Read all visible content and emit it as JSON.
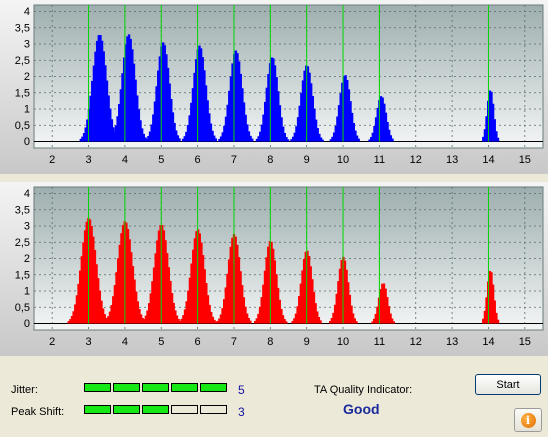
{
  "chart_data": [
    {
      "type": "bar",
      "color": "#0000ff",
      "x_ticks": [
        "2",
        "3",
        "4",
        "5",
        "6",
        "7",
        "8",
        "9",
        "10",
        "11",
        "12",
        "13",
        "14",
        "15"
      ],
      "y_ticks": [
        "0",
        "0,5",
        "1",
        "1,5",
        "2",
        "2,5",
        "3",
        "3,5",
        "4"
      ],
      "xlim": [
        1.5,
        15.5
      ],
      "ylim": [
        -0.2,
        4.2
      ],
      "grid": true,
      "marker_lines": [
        3,
        4,
        5,
        6,
        7,
        8,
        9,
        10,
        11,
        14
      ],
      "marker_color": "#00d800",
      "peaks": [
        {
          "center": 3.3,
          "height": 3.3,
          "width": 0.19
        },
        {
          "center": 4.1,
          "height": 3.3,
          "width": 0.18
        },
        {
          "center": 5.05,
          "height": 3.05,
          "width": 0.17
        },
        {
          "center": 6.05,
          "height": 2.95,
          "width": 0.17
        },
        {
          "center": 7.05,
          "height": 2.8,
          "width": 0.17
        },
        {
          "center": 8.05,
          "height": 2.6,
          "width": 0.16
        },
        {
          "center": 9.0,
          "height": 2.35,
          "width": 0.16
        },
        {
          "center": 10.05,
          "height": 2.05,
          "width": 0.15
        },
        {
          "center": 11.05,
          "height": 1.4,
          "width": 0.13
        },
        {
          "center": 14.05,
          "height": 1.6,
          "width": 0.09
        }
      ]
    },
    {
      "type": "bar",
      "color": "#ff0000",
      "x_ticks": [
        "2",
        "3",
        "4",
        "5",
        "6",
        "7",
        "8",
        "9",
        "10",
        "11",
        "12",
        "13",
        "14",
        "15"
      ],
      "y_ticks": [
        "0",
        "0,5",
        "1",
        "1,5",
        "2",
        "2,5",
        "3",
        "3,5",
        "4"
      ],
      "xlim": [
        1.5,
        15.5
      ],
      "ylim": [
        -0.2,
        4.2
      ],
      "grid": true,
      "marker_lines": [
        3,
        4,
        5,
        6,
        7,
        8,
        9,
        10,
        11,
        14
      ],
      "marker_color": "#00d800",
      "peaks": [
        {
          "center": 3.0,
          "height": 3.25,
          "width": 0.2
        },
        {
          "center": 4.0,
          "height": 3.15,
          "width": 0.2
        },
        {
          "center": 5.0,
          "height": 3.05,
          "width": 0.19
        },
        {
          "center": 6.0,
          "height": 2.9,
          "width": 0.18
        },
        {
          "center": 7.0,
          "height": 2.75,
          "width": 0.17
        },
        {
          "center": 8.0,
          "height": 2.55,
          "width": 0.16
        },
        {
          "center": 9.0,
          "height": 2.25,
          "width": 0.15
        },
        {
          "center": 10.0,
          "height": 2.05,
          "width": 0.14
        },
        {
          "center": 11.1,
          "height": 1.25,
          "width": 0.12
        },
        {
          "center": 14.05,
          "height": 1.65,
          "width": 0.09
        }
      ]
    }
  ],
  "jitter": {
    "label": "Jitter:",
    "value": "5",
    "level": 5,
    "max": 5
  },
  "peak_shift": {
    "label": "Peak Shift:",
    "value": "3",
    "level": 3,
    "max": 5
  },
  "ta_quality": {
    "label": "TA Quality Indicator:",
    "value": "Good"
  },
  "start_button": {
    "label": "Start"
  },
  "info_button": {
    "icon": "info-icon",
    "glyph": "i"
  }
}
